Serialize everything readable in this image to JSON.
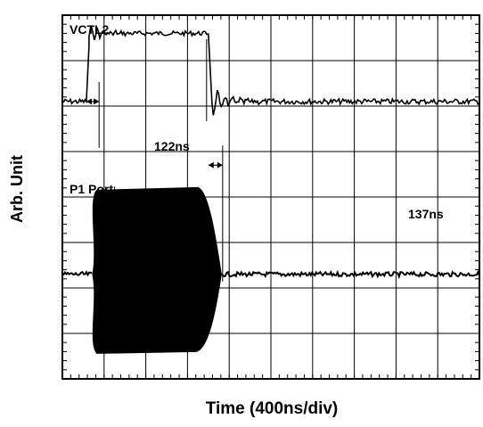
{
  "chart_data": {
    "type": "line",
    "title": "",
    "xlabel": "Time (400ns/div)",
    "ylabel": "Arb. Unit",
    "x_units": "ns",
    "x_per_division": 400,
    "x_divisions": 10,
    "y_divisions": 8,
    "xlim": [
      0,
      4000
    ],
    "ylim": [
      0,
      8
    ],
    "grid": true,
    "series": [
      {
        "name": "VCTL2",
        "kind": "pulse",
        "low_level": 6.1,
        "high_level": 7.6,
        "rise_ns": 230,
        "fall_ns": 1400,
        "ringing": true
      },
      {
        "name": "P1 Port",
        "kind": "rf_burst",
        "baseline": 2.3,
        "burst_top": 4.15,
        "burst_bottom": 0.6,
        "burst_start_ns": 290,
        "burst_full_ns": 330,
        "burst_stop_ns": 1490
      }
    ],
    "annotations": [
      {
        "label": "122ns",
        "from_ns": 230,
        "to_ns": 352,
        "level": 6.1
      },
      {
        "label": "137ns",
        "from_ns": 1400,
        "to_ns": 1537,
        "level": 4.7
      }
    ],
    "colors": {
      "trace": "#000000",
      "grid": "#000000",
      "background": "#ffffff"
    }
  }
}
